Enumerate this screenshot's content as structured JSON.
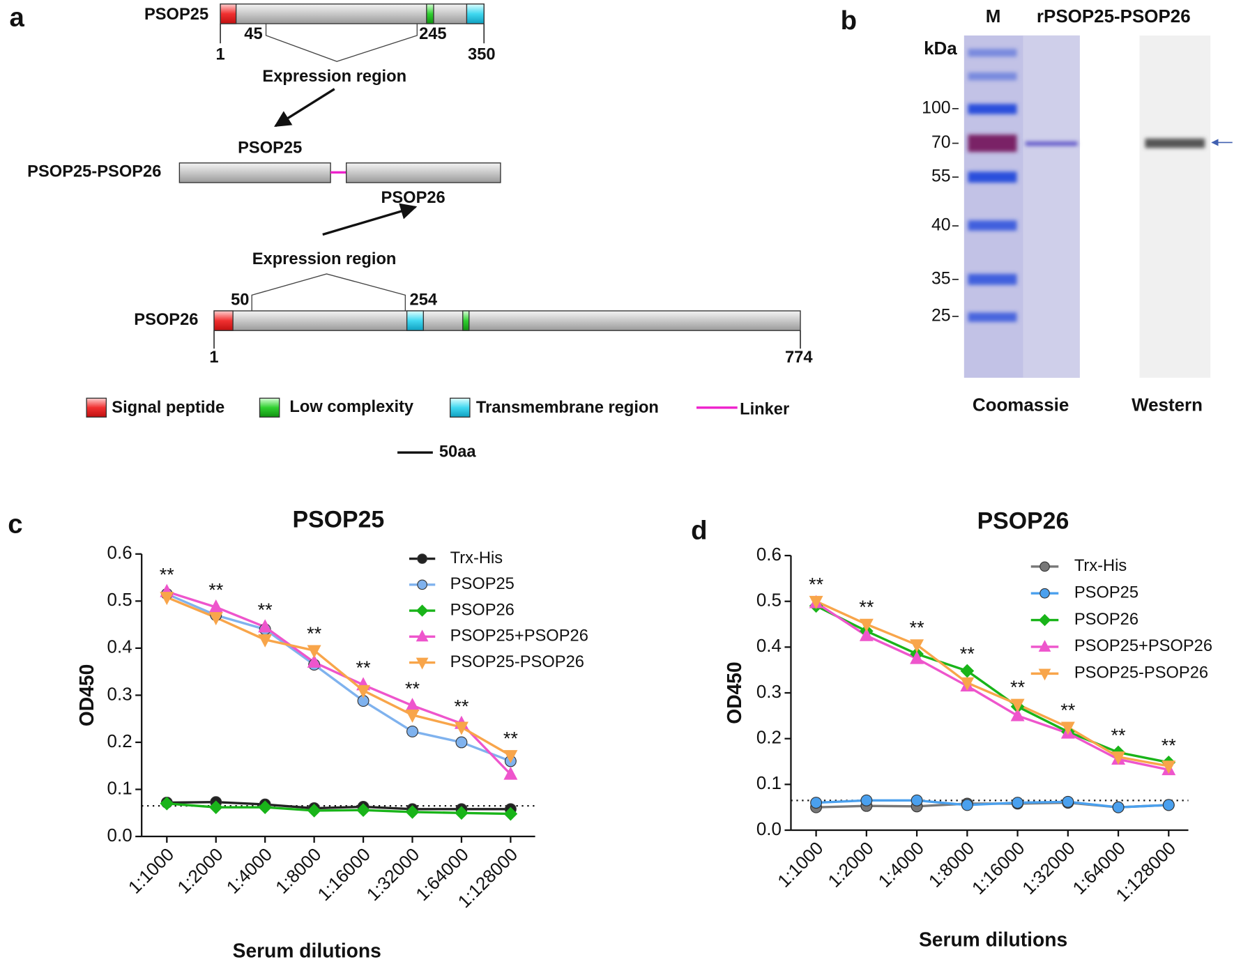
{
  "panel_labels": [
    "a",
    "b",
    "c",
    "d"
  ],
  "panel_a": {
    "psop25": {
      "label": "PSOP25",
      "start": 1,
      "end": 350,
      "region_start": 45,
      "region_end": 245,
      "region_label": "Expression region"
    },
    "fusion": {
      "label": "PSOP25-PSOP26",
      "part1": "PSOP25",
      "part2": "PSOP26"
    },
    "psop26": {
      "label": "PSOP26",
      "start": 1,
      "end": 774,
      "region_start": 50,
      "region_end": 254,
      "region_label": "Expression region"
    },
    "legend": [
      "Signal peptide",
      "Low complexity",
      "Transmembrane region",
      "Linker"
    ],
    "scale_bar": "50aa"
  },
  "panel_b": {
    "lane_marker": "M",
    "sample": "rPSOP25-PSOP26",
    "unit": "kDa",
    "markers": [
      100,
      70,
      55,
      40,
      35,
      25
    ],
    "gels": [
      "Coomassie",
      "Western"
    ]
  },
  "chart_data": [
    {
      "type": "line",
      "title": "PSOP25",
      "y_label": "OD450",
      "x_label": "Serum dilutions",
      "categories": [
        "1:1000",
        "1:2000",
        "1:4000",
        "1:8000",
        "1:16000",
        "1:32000",
        "1:64000",
        "1:128000"
      ],
      "ylim": [
        0,
        0.6
      ],
      "yticks": [
        {
          "value": 0,
          "label": "0.0"
        },
        0.1,
        0.2,
        0.3,
        0.4,
        0.5,
        0.6
      ],
      "reference_line": 0.065,
      "legend": "top-right",
      "annotations": [
        "**",
        "**",
        "**",
        "**",
        "**",
        "**",
        "**",
        "**"
      ],
      "series": [
        {
          "name": "Trx-His",
          "color": "#222222",
          "marker": "circle",
          "values": [
            0.072,
            0.073,
            0.068,
            0.06,
            0.063,
            0.058,
            0.058,
            0.058
          ]
        },
        {
          "name": "PSOP25",
          "color": "#7fb2ee",
          "marker": "circle",
          "values": [
            0.515,
            0.47,
            0.44,
            0.365,
            0.288,
            0.223,
            0.2,
            0.16
          ]
        },
        {
          "name": "PSOP26",
          "color": "#19b419",
          "marker": "diamond",
          "values": [
            0.07,
            0.062,
            0.062,
            0.055,
            0.056,
            0.052,
            0.05,
            0.048
          ]
        },
        {
          "name": "PSOP25+PSOP26",
          "color": "#ee55cc",
          "marker": "triangle-up",
          "values": [
            0.52,
            0.487,
            0.445,
            0.37,
            0.322,
            0.278,
            0.24,
            0.132
          ]
        },
        {
          "name": "PSOP25-PSOP26",
          "color": "#f8a54a",
          "marker": "triangle-down",
          "values": [
            0.508,
            0.465,
            0.418,
            0.395,
            0.31,
            0.258,
            0.232,
            0.172
          ]
        }
      ]
    },
    {
      "type": "line",
      "title": "PSOP26",
      "y_label": "OD450",
      "x_label": "Serum dilutions",
      "categories": [
        "1:1000",
        "1:2000",
        "1:4000",
        "1:8000",
        "1:16000",
        "1:32000",
        "1:64000",
        "1:128000"
      ],
      "ylim": [
        0,
        0.6
      ],
      "yticks": [
        {
          "value": 0,
          "label": "0.0"
        },
        0.1,
        0.2,
        0.3,
        0.4,
        0.5,
        0.6
      ],
      "reference_line": 0.065,
      "legend": "top-right",
      "annotations": [
        "**",
        "**",
        "**",
        "**",
        "**",
        "**",
        "**",
        "**"
      ],
      "series": [
        {
          "name": "Trx-His",
          "color": "#777777",
          "marker": "circle",
          "values": [
            0.05,
            0.053,
            0.052,
            0.058,
            0.058,
            0.06,
            0.05,
            0.055
          ]
        },
        {
          "name": "PSOP25",
          "color": "#4aa0ee",
          "marker": "circle",
          "values": [
            0.06,
            0.065,
            0.065,
            0.055,
            0.06,
            0.062,
            0.05,
            0.055
          ]
        },
        {
          "name": "PSOP26",
          "color": "#19b419",
          "marker": "diamond",
          "values": [
            0.49,
            0.435,
            0.385,
            0.348,
            0.27,
            0.215,
            0.17,
            0.148
          ]
        },
        {
          "name": "PSOP25+PSOP26",
          "color": "#ee55cc",
          "marker": "triangle-up",
          "values": [
            0.497,
            0.425,
            0.375,
            0.315,
            0.25,
            0.212,
            0.155,
            0.132
          ]
        },
        {
          "name": "PSOP25-PSOP26",
          "color": "#f8a54a",
          "marker": "triangle-down",
          "values": [
            0.5,
            0.45,
            0.405,
            0.322,
            0.275,
            0.225,
            0.16,
            0.14
          ]
        }
      ]
    }
  ]
}
